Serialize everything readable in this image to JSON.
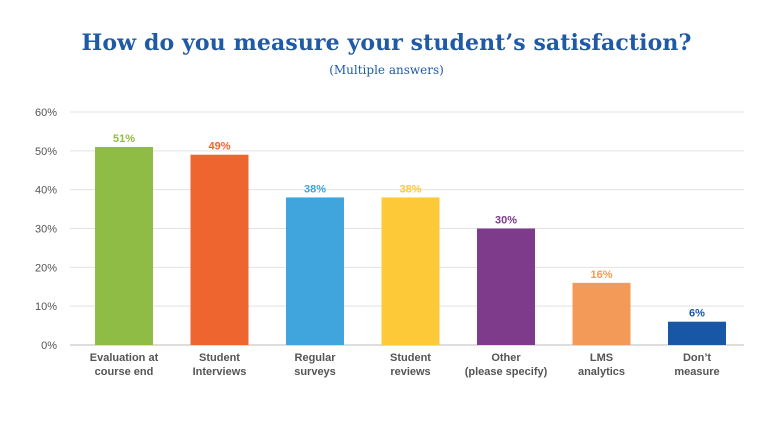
{
  "chart_data": {
    "type": "bar",
    "title": "How do you measure your student’s satisfaction?",
    "subtitle": "(Multiple answers)",
    "xlabel": "",
    "ylabel": "",
    "ylim": [
      0,
      60
    ],
    "yticks": [
      0,
      10,
      20,
      30,
      40,
      50,
      60
    ],
    "ytick_labels": [
      "0%",
      "10%",
      "20%",
      "30%",
      "40%",
      "50%",
      "60%"
    ],
    "grid": true,
    "legend": "none",
    "categories": [
      [
        "Evaluation at",
        "course end"
      ],
      [
        "Student",
        "Interviews"
      ],
      [
        "Regular",
        "surveys"
      ],
      [
        "Student",
        "reviews"
      ],
      [
        "Other",
        "(please specify)"
      ],
      [
        "LMS",
        "analytics"
      ],
      [
        "Don’t",
        "measure"
      ]
    ],
    "values": [
      51,
      49,
      38,
      38,
      30,
      16,
      6
    ],
    "data_labels": [
      "51%",
      "49%",
      "38%",
      "38%",
      "30%",
      "16%",
      "6%"
    ],
    "colors": [
      "#8fbc45",
      "#ef6530",
      "#3fa5dc",
      "#fec938",
      "#7e3b8c",
      "#f49a58",
      "#1757a6"
    ]
  }
}
